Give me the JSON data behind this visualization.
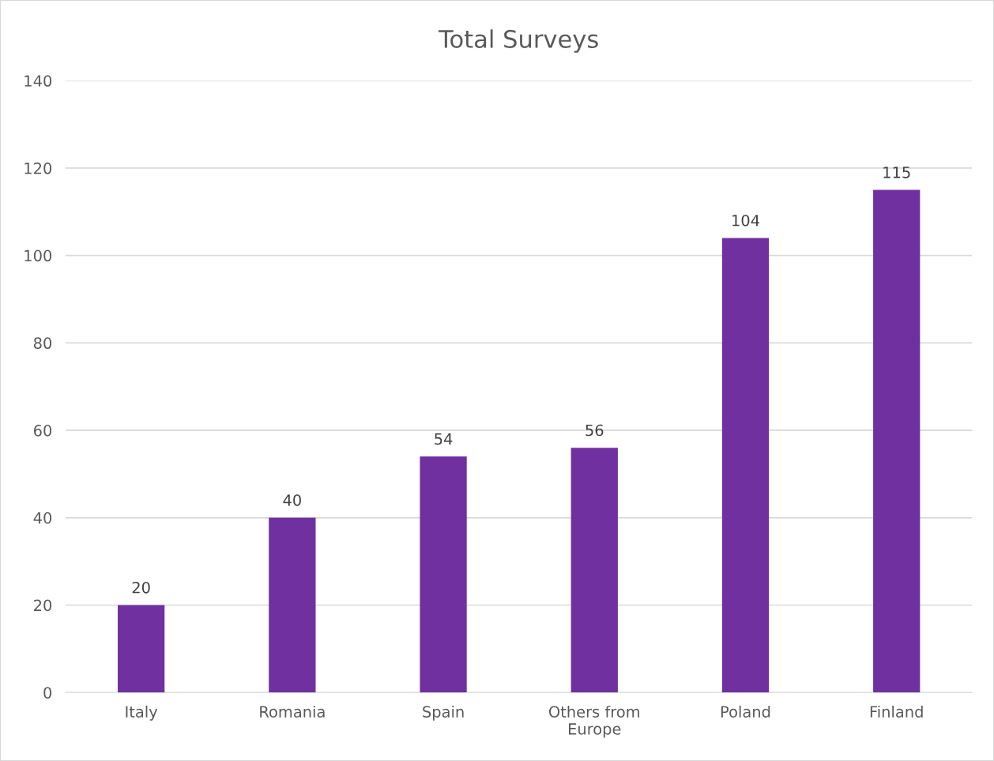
{
  "chart_data": {
    "type": "bar",
    "title": "Total Surveys",
    "categories": [
      "Italy",
      "Romania",
      "Spain",
      "Others from Europe",
      "Poland",
      "Finland"
    ],
    "values": [
      20,
      40,
      54,
      56,
      104,
      115
    ],
    "color": "#7030a0",
    "ylim": [
      0,
      140
    ],
    "yticks": [
      0,
      20,
      40,
      60,
      80,
      100,
      120,
      140
    ],
    "grid": "y",
    "data_labels": true,
    "legend": false
  }
}
